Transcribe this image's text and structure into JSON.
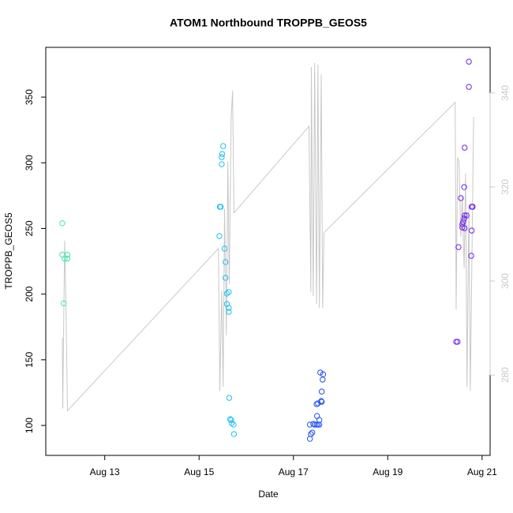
{
  "chart_data": {
    "type": "scatter",
    "title": "ATOM1 Northbound TROPPB_GEOS5",
    "x_label": "Date",
    "y_label": "TROPPB_GEOS5",
    "xlim": [
      11.75,
      21.17
    ],
    "xticks": [
      {
        "value": 13,
        "label": "Aug 13"
      },
      {
        "value": 15,
        "label": "Aug 15"
      },
      {
        "value": 17,
        "label": "Aug 17"
      },
      {
        "value": 19,
        "label": "Aug 19"
      },
      {
        "value": 21,
        "label": "Aug 21"
      }
    ],
    "ylim": [
      77.2,
      387.9
    ],
    "yticks": [
      100,
      150,
      200,
      250,
      300,
      350
    ],
    "y2lim": [
      262.9,
      349.7
    ],
    "y2ticks": [
      280,
      300,
      320,
      340
    ],
    "y2_color": "#c8c8c8",
    "series": [
      {
        "type": "scatter",
        "color": "#3ee8a8",
        "x": [
          12.1,
          12.1,
          12.15,
          12.21,
          12.21,
          12.13
        ],
        "values": [
          254,
          230,
          227,
          230,
          227,
          193
        ]
      },
      {
        "type": "scatter",
        "color": "#1ec0ee",
        "x": [
          15.51,
          15.49,
          15.48,
          15.48,
          15.44,
          15.46,
          15.43,
          15.54,
          15.56,
          15.56,
          15.59,
          15.63,
          15.59,
          15.63,
          15.63,
          15.64,
          15.66,
          15.68,
          15.69,
          15.73,
          15.74
        ],
        "values": [
          312.7,
          306.7,
          304.3,
          298.9,
          266.5,
          266.5,
          244.2,
          234.6,
          224.4,
          212.4,
          200.4,
          201.6,
          192.5,
          189.5,
          186.5,
          121,
          104.8,
          104.2,
          101.8,
          100.6,
          93.4
        ]
      },
      {
        "type": "scatter",
        "color": "#1e50ee",
        "x": [
          17.57,
          17.63,
          17.62,
          17.6,
          17.59,
          17.6,
          17.52,
          17.49,
          17.5,
          17.55,
          17.35,
          17.42,
          17.45,
          17.49,
          17.52,
          17.55,
          17.37,
          17.35,
          17.4
        ],
        "values": [
          140.3,
          139,
          134.9,
          125.8,
          118.6,
          118,
          116.8,
          116.2,
          107.2,
          104.2,
          100.6,
          101.2,
          100.6,
          100.6,
          100.6,
          100.6,
          93.4,
          89.8,
          94.6
        ]
      },
      {
        "type": "scatter",
        "color": "#7222e6",
        "x": [
          20.72,
          20.72,
          20.63,
          20.62,
          20.55,
          20.78,
          20.8,
          20.67,
          20.63,
          20.62,
          20.6,
          20.58,
          20.58,
          20.63,
          20.78,
          20.5,
          20.77,
          20.45,
          20.48
        ],
        "values": [
          377,
          357.8,
          311.5,
          281.5,
          273.1,
          266.5,
          266.5,
          259.9,
          259.9,
          257.5,
          255.1,
          253.2,
          250.8,
          250.2,
          248.4,
          235.8,
          229.2,
          163.7,
          163.7
        ]
      },
      {
        "type": "line",
        "axis": "y2",
        "color": "#c8c8c8",
        "x": [
          12.1,
          12.11,
          12.15,
          12.18,
          12.21,
          15.41,
          15.44,
          15.48,
          15.51,
          15.54,
          15.58,
          15.61,
          15.64,
          15.68,
          15.71,
          15.74,
          17.33,
          17.37,
          17.38,
          17.42,
          17.45,
          17.49,
          17.52,
          17.55,
          17.59,
          17.62,
          17.65,
          20.43,
          20.45,
          20.48,
          20.51,
          20.55,
          20.58,
          20.62,
          20.65,
          20.68,
          20.72,
          20.75,
          20.78,
          20.82
        ],
        "values": [
          287.9,
          272.9,
          308.6,
          293.4,
          272.4,
          306.9,
          276.6,
          298,
          277.5,
          315.3,
          288.4,
          325.4,
          299.3,
          334.6,
          340.5,
          314.5,
          332.9,
          297.6,
          345.5,
          296.8,
          346.4,
          295.1,
          346,
          294.3,
          343.9,
          294.3,
          310.3,
          338,
          293.9,
          326.2,
          325.4,
          309.4,
          317.8,
          302.7,
          322.9,
          277.5,
          316.1,
          276.6,
          301,
          334.9
        ]
      }
    ]
  }
}
